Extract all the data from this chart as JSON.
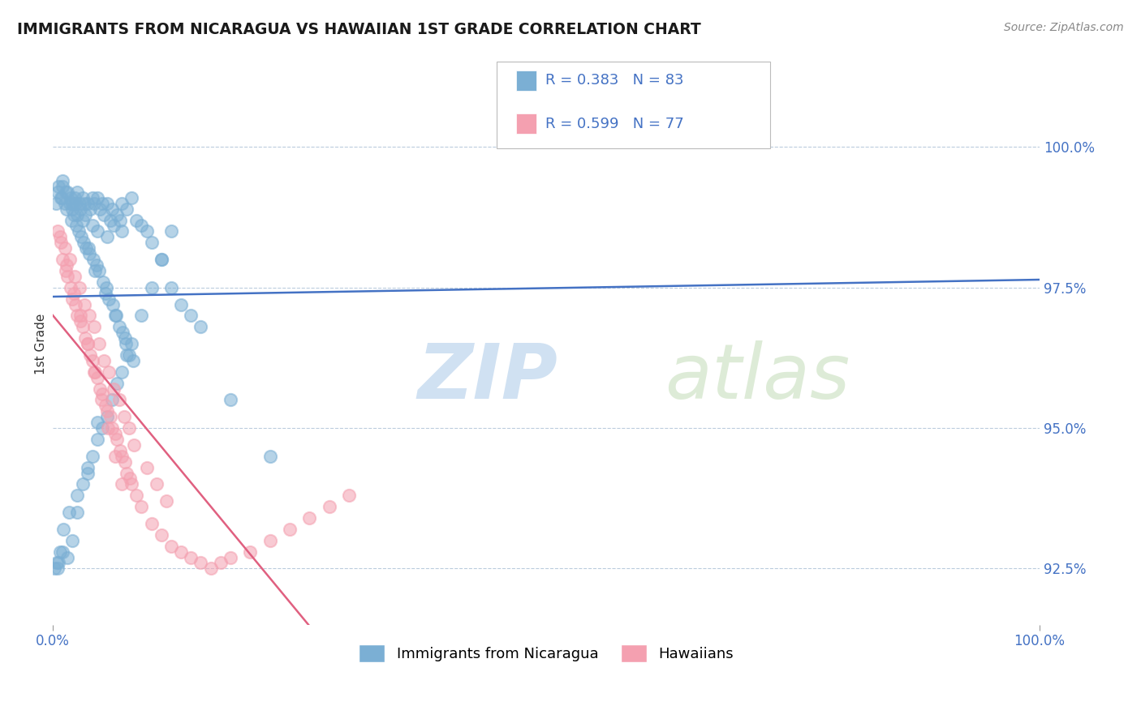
{
  "title": "IMMIGRANTS FROM NICARAGUA VS HAWAIIAN 1ST GRADE CORRELATION CHART",
  "source_text": "Source: ZipAtlas.com",
  "ylabel_label": "1st Grade",
  "ylabel_right_ticks": [
    92.5,
    95.0,
    97.5,
    100.0
  ],
  "ylabel_right_labels": [
    "92.5%",
    "95.0%",
    "97.5%",
    "100.0%"
  ],
  "xmin": 0.0,
  "xmax": 100.0,
  "ymin": 91.5,
  "ymax": 101.5,
  "legend_blue_label": "Immigrants from Nicaragua",
  "legend_pink_label": "Hawaiians",
  "r_blue": 0.383,
  "n_blue": 83,
  "r_pink": 0.599,
  "n_pink": 77,
  "blue_color": "#7BAFD4",
  "pink_color": "#F4A0B0",
  "blue_line_color": "#4472C4",
  "pink_line_color": "#E06080",
  "watermark_zip": "ZIP",
  "watermark_atlas": "atlas",
  "blue_scatter_x": [
    0.3,
    0.5,
    0.8,
    1.0,
    1.2,
    1.5,
    1.8,
    2.0,
    2.0,
    2.2,
    2.3,
    2.5,
    2.5,
    2.7,
    2.8,
    3.0,
    3.0,
    3.2,
    3.3,
    3.5,
    3.8,
    4.0,
    4.0,
    4.2,
    4.5,
    4.5,
    4.8,
    5.0,
    5.2,
    5.5,
    5.5,
    5.8,
    6.0,
    6.2,
    6.5,
    6.8,
    7.0,
    7.0,
    7.5,
    8.0,
    8.5,
    9.0,
    9.5,
    10.0,
    11.0,
    12.0,
    13.0,
    14.0,
    15.0,
    1.0,
    1.3,
    1.7,
    2.1,
    2.4,
    2.6,
    3.1,
    3.4,
    3.7,
    4.1,
    4.4,
    4.7,
    5.1,
    5.4,
    5.7,
    6.1,
    6.4,
    6.7,
    7.1,
    7.4,
    7.7,
    8.1,
    0.6,
    0.9,
    1.4,
    1.9,
    2.9,
    3.6,
    4.3,
    5.3,
    6.3,
    7.3,
    18.0,
    22.0
  ],
  "blue_scatter_y": [
    99.0,
    99.2,
    99.1,
    99.3,
    99.0,
    99.2,
    99.1,
    99.0,
    98.9,
    99.1,
    99.0,
    99.2,
    98.8,
    99.0,
    98.9,
    99.1,
    98.7,
    99.0,
    98.8,
    99.0,
    98.9,
    99.1,
    98.6,
    99.0,
    99.1,
    98.5,
    98.9,
    99.0,
    98.8,
    99.0,
    98.4,
    98.7,
    98.9,
    98.6,
    98.8,
    98.7,
    99.0,
    98.5,
    98.9,
    99.1,
    98.7,
    98.6,
    98.5,
    98.3,
    98.0,
    97.5,
    97.2,
    97.0,
    96.8,
    99.4,
    99.2,
    99.0,
    98.8,
    98.6,
    98.5,
    98.3,
    98.2,
    98.1,
    98.0,
    97.9,
    97.8,
    97.6,
    97.5,
    97.3,
    97.2,
    97.0,
    96.8,
    96.7,
    96.5,
    96.3,
    96.2,
    99.3,
    99.1,
    98.9,
    98.7,
    98.4,
    98.2,
    97.8,
    97.4,
    97.0,
    96.6,
    95.5,
    94.5
  ],
  "blue_scatter_x2": [
    0.4,
    0.7,
    1.1,
    1.6,
    2.0,
    2.5,
    3.0,
    3.5,
    4.0,
    4.5,
    5.0,
    5.5,
    6.0,
    6.5,
    7.0,
    7.5,
    8.0,
    9.0,
    10.0,
    11.0,
    12.0,
    0.5,
    1.5,
    2.5,
    3.5,
    4.5,
    0.2,
    0.6,
    1.0
  ],
  "blue_scatter_y2": [
    92.6,
    92.8,
    93.2,
    93.5,
    93.0,
    93.8,
    94.0,
    94.2,
    94.5,
    94.8,
    95.0,
    95.2,
    95.5,
    95.8,
    96.0,
    96.3,
    96.5,
    97.0,
    97.5,
    98.0,
    98.5,
    92.5,
    92.7,
    93.5,
    94.3,
    95.1,
    92.5,
    92.6,
    92.8
  ],
  "pink_scatter_x": [
    0.5,
    0.8,
    1.0,
    1.3,
    1.5,
    1.8,
    2.0,
    2.3,
    2.5,
    2.8,
    3.0,
    3.3,
    3.5,
    3.8,
    4.0,
    4.3,
    4.5,
    4.8,
    5.0,
    5.3,
    5.5,
    5.8,
    6.0,
    6.3,
    6.5,
    6.8,
    7.0,
    7.3,
    7.5,
    7.8,
    8.0,
    8.5,
    9.0,
    10.0,
    11.0,
    12.0,
    13.0,
    14.0,
    15.0,
    16.0,
    17.0,
    18.0,
    20.0,
    22.0,
    24.0,
    26.0,
    28.0,
    30.0,
    1.2,
    1.7,
    2.2,
    2.7,
    3.2,
    3.7,
    4.2,
    4.7,
    5.2,
    5.7,
    6.2,
    6.7,
    7.2,
    7.7,
    8.2,
    9.5,
    10.5,
    11.5,
    0.7,
    1.4,
    2.1,
    2.8,
    3.5,
    4.2,
    4.9,
    5.6,
    6.3,
    7.0
  ],
  "pink_scatter_y": [
    98.5,
    98.3,
    98.0,
    97.8,
    97.7,
    97.5,
    97.3,
    97.2,
    97.0,
    96.9,
    96.8,
    96.6,
    96.5,
    96.3,
    96.2,
    96.0,
    95.9,
    95.7,
    95.6,
    95.4,
    95.3,
    95.2,
    95.0,
    94.9,
    94.8,
    94.6,
    94.5,
    94.4,
    94.2,
    94.1,
    94.0,
    93.8,
    93.6,
    93.3,
    93.1,
    92.9,
    92.8,
    92.7,
    92.6,
    92.5,
    92.6,
    92.7,
    92.8,
    93.0,
    93.2,
    93.4,
    93.6,
    93.8,
    98.2,
    98.0,
    97.7,
    97.5,
    97.2,
    97.0,
    96.8,
    96.5,
    96.2,
    96.0,
    95.7,
    95.5,
    95.2,
    95.0,
    94.7,
    94.3,
    94.0,
    93.7,
    98.4,
    97.9,
    97.4,
    97.0,
    96.5,
    96.0,
    95.5,
    95.0,
    94.5,
    94.0
  ]
}
